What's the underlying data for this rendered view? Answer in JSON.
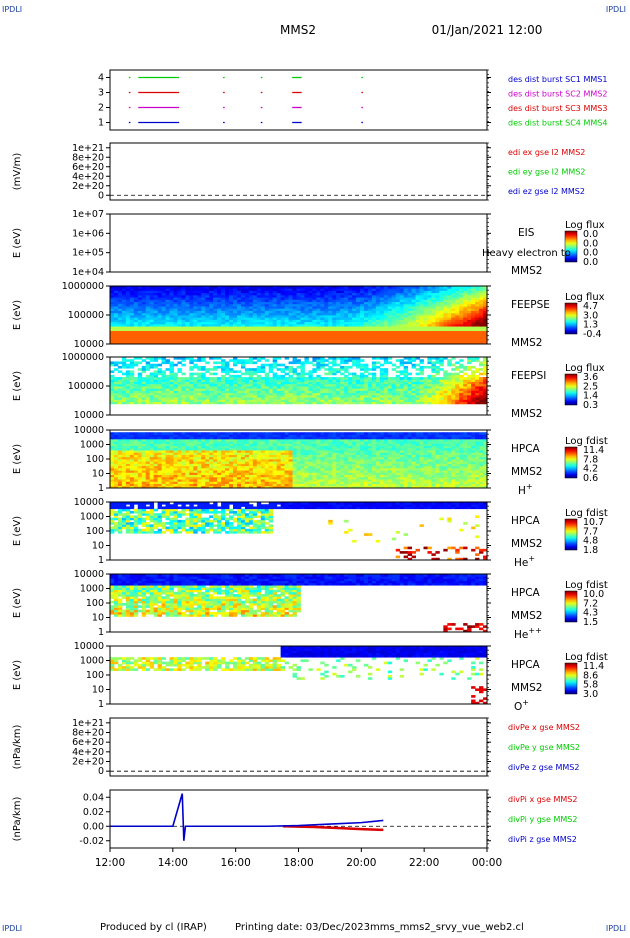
{
  "header": {
    "corner_label": "IPDLI",
    "spacecraft": "MMS2",
    "datetime": "01/Jan/2021 12:00"
  },
  "footer": {
    "produced_by": "Produced by cl (IRAP)",
    "printing_date": "Printing date: 03/Dec/2023",
    "script_name": "mms_mms2_srvy_vue_web2.cl"
  },
  "colors": {
    "mms1": "#0000cc",
    "mms2": "#cc00cc",
    "mms3": "#dd0000",
    "mms4": "#00cc00",
    "frame": "#000000"
  },
  "chart_data": [
    {
      "id": "burst",
      "type": "line",
      "ylabel": "",
      "yticks": [
        "1",
        "2",
        "3",
        "4"
      ],
      "ylim": [
        0.5,
        4.5
      ],
      "legend": [
        {
          "label": "des dist burst SC1 MMS1",
          "color": "#0000cc"
        },
        {
          "label": "des dist burst SC2 MMS2",
          "color": "#cc00cc"
        },
        {
          "label": "des dist burst SC3 MMS3",
          "color": "#dd0000"
        },
        {
          "label": "des dist burst SC4 MMS4",
          "color": "#00cc00"
        }
      ],
      "series": [
        {
          "name": "des dist burst SC1 MMS1",
          "level": 1,
          "color": "#0000cc",
          "intervals": [
            [
              12.6,
              12.65
            ],
            [
              12.9,
              14.2
            ],
            [
              15.6,
              15.65
            ],
            [
              16.8,
              16.85
            ],
            [
              17.8,
              18.1
            ],
            [
              20.0,
              20.05
            ]
          ]
        },
        {
          "name": "des dist burst SC2 MMS2",
          "level": 2,
          "color": "#cc00cc",
          "intervals": [
            [
              12.6,
              12.65
            ],
            [
              12.9,
              14.2
            ],
            [
              15.6,
              15.65
            ],
            [
              16.8,
              16.85
            ],
            [
              17.8,
              18.1
            ],
            [
              20.0,
              20.05
            ]
          ]
        },
        {
          "name": "des dist burst SC3 MMS3",
          "level": 3,
          "color": "#dd0000",
          "intervals": [
            [
              12.6,
              12.65
            ],
            [
              12.9,
              14.2
            ],
            [
              15.6,
              15.65
            ],
            [
              16.8,
              16.85
            ],
            [
              17.8,
              18.1
            ],
            [
              20.0,
              20.05
            ]
          ]
        },
        {
          "name": "des dist burst SC4 MMS4",
          "level": 4,
          "color": "#00cc00",
          "intervals": [
            [
              12.6,
              12.65
            ],
            [
              12.9,
              14.2
            ],
            [
              15.6,
              15.65
            ],
            [
              16.8,
              16.85
            ],
            [
              17.8,
              18.1
            ],
            [
              20.0,
              20.05
            ]
          ]
        }
      ]
    },
    {
      "id": "edi",
      "type": "line",
      "ylabel": "(mV/m)",
      "yticks": [
        "0",
        "2e+20",
        "4e+20",
        "6e+20",
        "8e+20",
        "1e+21"
      ],
      "ylim": [
        -1e+20,
        1.1e+21
      ],
      "zero_line": true,
      "legend": [
        {
          "label": "edi ex gse l2 MMS2",
          "color": "#dd0000"
        },
        {
          "label": "edi ey gse l2 MMS2",
          "color": "#00cc00"
        },
        {
          "label": "edi ez gse l2 MMS2",
          "color": "#0000cc"
        }
      ]
    },
    {
      "id": "eis",
      "type": "heatmap",
      "ylabel": "E (eV)",
      "yticks": [
        "1e+04",
        "1e+05",
        "1e+06",
        "1e+07"
      ],
      "log_y": true,
      "labels": [
        "EIS",
        "MMS2"
      ],
      "overlay_label": "Heavy electron to",
      "colorbar": {
        "title": "Log flux",
        "ticks": [
          "0.0",
          "0.0",
          "0.0",
          "0.0"
        ]
      }
    },
    {
      "id": "feepse",
      "type": "heatmap",
      "ylabel": "E (eV)",
      "yticks": [
        "10000",
        "100000",
        "1000000"
      ],
      "log_y": true,
      "labels": [
        "FEEPSE",
        "MMS2"
      ],
      "colorbar": {
        "title": "Log flux",
        "ticks": [
          "4.7",
          "3.0",
          "1.3",
          "-0.4"
        ]
      }
    },
    {
      "id": "feepsi",
      "type": "heatmap",
      "ylabel": "E (eV)",
      "yticks": [
        "10000",
        "100000",
        "1000000"
      ],
      "log_y": true,
      "labels": [
        "FEEPSI",
        "MMS2"
      ],
      "colorbar": {
        "title": "Log flux",
        "ticks": [
          "3.6",
          "2.5",
          "1.4",
          "0.3"
        ]
      }
    },
    {
      "id": "hpca_h",
      "type": "heatmap",
      "ylabel": "E (eV)",
      "yticks": [
        "1",
        "10",
        "100",
        "1000",
        "10000"
      ],
      "log_y": true,
      "labels": [
        "HPCA",
        "MMS2",
        "H+"
      ],
      "colorbar": {
        "title": "Log fdist",
        "ticks": [
          "11.4",
          "7.8",
          "4.2",
          "0.6"
        ]
      }
    },
    {
      "id": "hpca_he",
      "type": "heatmap",
      "ylabel": "E (eV)",
      "yticks": [
        "1",
        "10",
        "100",
        "1000",
        "10000"
      ],
      "log_y": true,
      "labels": [
        "HPCA",
        "MMS2",
        "He+"
      ],
      "colorbar": {
        "title": "Log fdist",
        "ticks": [
          "10.7",
          "7.7",
          "4.8",
          "1.8"
        ]
      }
    },
    {
      "id": "hpca_hepp",
      "type": "heatmap",
      "ylabel": "E (eV)",
      "yticks": [
        "1",
        "10",
        "100",
        "1000",
        "10000"
      ],
      "log_y": true,
      "labels": [
        "HPCA",
        "MMS2",
        "He++"
      ],
      "colorbar": {
        "title": "Log fdist",
        "ticks": [
          "10.0",
          "7.2",
          "4.3",
          "1.5"
        ]
      }
    },
    {
      "id": "hpca_o",
      "type": "heatmap",
      "ylabel": "E (eV)",
      "yticks": [
        "1",
        "10",
        "100",
        "1000",
        "10000"
      ],
      "log_y": true,
      "labels": [
        "HPCA",
        "MMS2",
        "O+"
      ],
      "colorbar": {
        "title": "Log fdist",
        "ticks": [
          "11.4",
          "8.6",
          "5.8",
          "3.0"
        ]
      }
    },
    {
      "id": "divpe",
      "type": "line",
      "ylabel": "(nPa/km)",
      "yticks": [
        "0",
        "2e+20",
        "4e+20",
        "6e+20",
        "8e+20",
        "1e+21"
      ],
      "ylim": [
        -1e+20,
        1.1e+21
      ],
      "zero_line": true,
      "legend": [
        {
          "label": "divPe x gse MMS2",
          "color": "#dd0000"
        },
        {
          "label": "divPe y gse MMS2",
          "color": "#00cc00"
        },
        {
          "label": "divPe z gse MMS2",
          "color": "#0000cc"
        }
      ]
    },
    {
      "id": "divpi",
      "type": "line",
      "ylabel": "(nPa/km)",
      "yticks": [
        "-0.02",
        "0.00",
        "0.02",
        "0.04"
      ],
      "ylim": [
        -0.03,
        0.05
      ],
      "zero_line": true,
      "legend": [
        {
          "label": "divPi x gse MMS2",
          "color": "#dd0000"
        },
        {
          "label": "divPi y gse MMS2",
          "color": "#00cc00"
        },
        {
          "label": "divPi z gse MMS2",
          "color": "#0000cc"
        }
      ],
      "series": [
        {
          "name": "divPi x gse MMS2",
          "color": "#dd0000",
          "x": [
            17.5,
            18.5,
            19.5,
            20.0,
            20.7
          ],
          "y": [
            0.0,
            -0.001,
            -0.003,
            -0.004,
            -0.005
          ]
        },
        {
          "name": "divPi z gse MMS2",
          "color": "#0000cc",
          "x": [
            12.0,
            13.0,
            14.0,
            14.3,
            14.35,
            14.4,
            15.0,
            16.0,
            17.0,
            18.0,
            19.0,
            20.0,
            20.7
          ],
          "y": [
            0.0,
            0.0,
            0.0,
            0.045,
            -0.02,
            0.0,
            0.0,
            0.0,
            0.0,
            0.001,
            0.003,
            0.005,
            0.008
          ]
        }
      ]
    }
  ],
  "xaxis": {
    "ticks": [
      "12:00",
      "14:00",
      "16:00",
      "18:00",
      "20:00",
      "22:00",
      "00:00"
    ],
    "range_hours": [
      12,
      24
    ]
  }
}
